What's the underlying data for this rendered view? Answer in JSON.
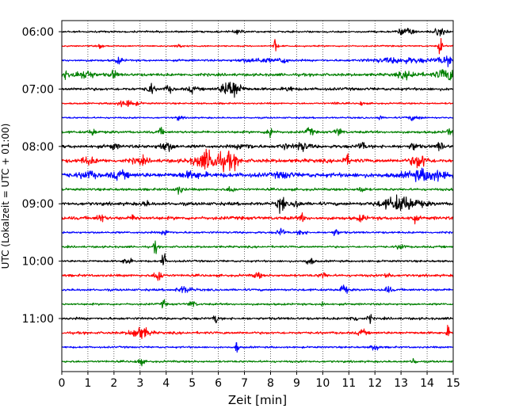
{
  "chart_data": {
    "type": "line",
    "xlabel": "Zeit  [min]",
    "ylabel": "UTC (Lokalzeit = UTC + 01:00)",
    "xlim": [
      0,
      15
    ],
    "x_ticks": [
      0,
      1,
      2,
      3,
      4,
      5,
      6,
      7,
      8,
      9,
      10,
      11,
      12,
      13,
      14,
      15
    ],
    "x_tick_labels": [
      "0",
      "1",
      "2",
      "3",
      "4",
      "5",
      "6",
      "7",
      "8",
      "9",
      "10",
      "11",
      "12",
      "13",
      "14",
      "15"
    ],
    "y_tick_labels": [
      "06:00",
      "07:00",
      "08:00",
      "09:00",
      "10:00",
      "11:00"
    ],
    "y_tick_rows": [
      0,
      4,
      8,
      12,
      16,
      20
    ],
    "grid": "vertical-dotted",
    "colors": [
      "#000000",
      "#ff0000",
      "#0000ff",
      "#008000"
    ],
    "series": [
      {
        "start": "06:00",
        "color": "#000000",
        "noise": 0.9,
        "events": [
          [
            6.8,
            0.15,
            1.5
          ],
          [
            13.2,
            0.2,
            4
          ],
          [
            14.5,
            0.2,
            3
          ]
        ]
      },
      {
        "start": "06:15",
        "color": "#ff0000",
        "noise": 0.7,
        "events": [
          [
            1.5,
            0.05,
            3
          ],
          [
            8.2,
            0.05,
            8
          ],
          [
            14.5,
            0.05,
            10
          ],
          [
            4.5,
            0.1,
            2
          ]
        ]
      },
      {
        "start": "06:30",
        "color": "#0000ff",
        "noise": 1.0,
        "events": [
          [
            2.2,
            0.1,
            3
          ],
          [
            7.5,
            0.5,
            2
          ],
          [
            8.5,
            0.1,
            4
          ],
          [
            13,
            0.8,
            2.5
          ],
          [
            14.8,
            0.3,
            4
          ]
        ]
      },
      {
        "start": "06:45",
        "color": "#008000",
        "noise": 1.4,
        "events": [
          [
            0.2,
            0.6,
            3
          ],
          [
            1,
            0.1,
            6
          ],
          [
            2,
            0.1,
            4
          ],
          [
            13.3,
            0.3,
            3
          ],
          [
            14.8,
            0.3,
            6
          ]
        ]
      },
      {
        "start": "07:00",
        "color": "#000000",
        "noise": 1.4,
        "events": [
          [
            3.4,
            0.1,
            5
          ],
          [
            4.1,
            0.1,
            3
          ],
          [
            5,
            0.1,
            3
          ],
          [
            6.5,
            0.25,
            10
          ],
          [
            8.7,
            0.1,
            2.5
          ]
        ]
      },
      {
        "start": "07:15",
        "color": "#ff0000",
        "noise": 0.8,
        "events": [
          [
            2.5,
            0.3,
            3
          ],
          [
            10.5,
            0.05,
            3
          ],
          [
            11.5,
            0.05,
            3
          ]
        ]
      },
      {
        "start": "07:30",
        "color": "#0000ff",
        "noise": 0.8,
        "events": [
          [
            4.5,
            0.1,
            2
          ],
          [
            12.2,
            0.05,
            3
          ],
          [
            13.5,
            0.2,
            2
          ]
        ]
      },
      {
        "start": "07:45",
        "color": "#008000",
        "noise": 1.2,
        "events": [
          [
            1.2,
            0.1,
            3
          ],
          [
            3.8,
            0.1,
            3
          ],
          [
            8,
            0.1,
            6
          ],
          [
            9.5,
            0.1,
            4
          ],
          [
            10.6,
            0.1,
            4
          ],
          [
            14.9,
            0.1,
            4
          ]
        ]
      },
      {
        "start": "08:00",
        "color": "#000000",
        "noise": 1.6,
        "events": [
          [
            2,
            0.1,
            3
          ],
          [
            4,
            0.2,
            4
          ],
          [
            7,
            0.2,
            2.5
          ],
          [
            8.5,
            0.1,
            3
          ],
          [
            9.2,
            0.2,
            4
          ],
          [
            11.5,
            0.1,
            4
          ],
          [
            13.5,
            0.1,
            4
          ],
          [
            14.5,
            0.1,
            4
          ]
        ]
      },
      {
        "start": "08:15",
        "color": "#ff0000",
        "noise": 1.8,
        "events": [
          [
            1,
            0.2,
            3
          ],
          [
            3,
            0.2,
            3
          ],
          [
            5.7,
            0.4,
            10
          ],
          [
            6.5,
            0.2,
            6
          ],
          [
            10.9,
            0.1,
            5
          ],
          [
            13.7,
            0.2,
            7
          ]
        ]
      },
      {
        "start": "08:30",
        "color": "#0000ff",
        "noise": 2.2,
        "events": [
          [
            1,
            0.2,
            3
          ],
          [
            2.2,
            0.2,
            3
          ],
          [
            5,
            0.3,
            2.5
          ],
          [
            8.5,
            0.2,
            2.5
          ],
          [
            14,
            0.5,
            5
          ]
        ]
      },
      {
        "start": "08:45",
        "color": "#008000",
        "noise": 1.2,
        "events": [
          [
            4.5,
            0.1,
            4
          ],
          [
            6.5,
            0.1,
            3
          ],
          [
            11.5,
            0.1,
            2.5
          ]
        ]
      },
      {
        "start": "09:00",
        "color": "#000000",
        "noise": 1.6,
        "events": [
          [
            3.2,
            0.1,
            2.5
          ],
          [
            8.4,
            0.1,
            8
          ],
          [
            9,
            0.1,
            4
          ],
          [
            13,
            0.5,
            7
          ]
        ]
      },
      {
        "start": "09:15",
        "color": "#ff0000",
        "noise": 1.6,
        "events": [
          [
            1.5,
            0.1,
            4
          ],
          [
            2.8,
            0.1,
            3
          ],
          [
            9.2,
            0.1,
            3
          ],
          [
            11.5,
            0.1,
            3
          ],
          [
            13.5,
            0.1,
            3
          ]
        ]
      },
      {
        "start": "09:30",
        "color": "#0000ff",
        "noise": 1.0,
        "events": [
          [
            4,
            0.1,
            3
          ],
          [
            8.4,
            0.1,
            4
          ],
          [
            9.2,
            0.1,
            3
          ],
          [
            10.5,
            0.1,
            3
          ]
        ]
      },
      {
        "start": "09:45",
        "color": "#008000",
        "noise": 1.0,
        "events": [
          [
            3.6,
            0.05,
            8
          ],
          [
            13,
            0.1,
            3
          ]
        ]
      },
      {
        "start": "10:00",
        "color": "#000000",
        "noise": 1.0,
        "events": [
          [
            2.5,
            0.1,
            4
          ],
          [
            3.9,
            0.05,
            10
          ],
          [
            9.5,
            0.1,
            4
          ]
        ]
      },
      {
        "start": "10:15",
        "color": "#ff0000",
        "noise": 1.2,
        "events": [
          [
            3.7,
            0.1,
            7
          ],
          [
            7.5,
            0.1,
            3
          ],
          [
            10,
            0.1,
            3
          ],
          [
            12.5,
            0.1,
            3
          ]
        ]
      },
      {
        "start": "10:30",
        "color": "#0000ff",
        "noise": 1.1,
        "events": [
          [
            4.7,
            0.2,
            3
          ],
          [
            10.8,
            0.1,
            5
          ],
          [
            12.5,
            0.1,
            3
          ]
        ]
      },
      {
        "start": "10:45",
        "color": "#008000",
        "noise": 1.0,
        "events": [
          [
            3.9,
            0.05,
            5
          ],
          [
            5,
            0.1,
            3
          ],
          [
            10,
            0.05,
            3
          ]
        ]
      },
      {
        "start": "11:00",
        "color": "#000000",
        "noise": 1.2,
        "events": [
          [
            5.9,
            0.05,
            7
          ],
          [
            11.2,
            0.1,
            3
          ],
          [
            11.8,
            0.05,
            5
          ]
        ]
      },
      {
        "start": "11:15",
        "color": "#ff0000",
        "noise": 1.2,
        "events": [
          [
            3,
            0.25,
            6
          ],
          [
            11.5,
            0.1,
            3
          ],
          [
            14.8,
            0.05,
            5
          ]
        ]
      },
      {
        "start": "11:30",
        "color": "#0000ff",
        "noise": 0.9,
        "events": [
          [
            6.7,
            0.05,
            6
          ],
          [
            12,
            0.1,
            4
          ]
        ]
      },
      {
        "start": "11:45",
        "color": "#008000",
        "noise": 1.0,
        "events": [
          [
            3,
            0.1,
            3
          ],
          [
            13.5,
            0.05,
            6
          ]
        ]
      }
    ]
  }
}
